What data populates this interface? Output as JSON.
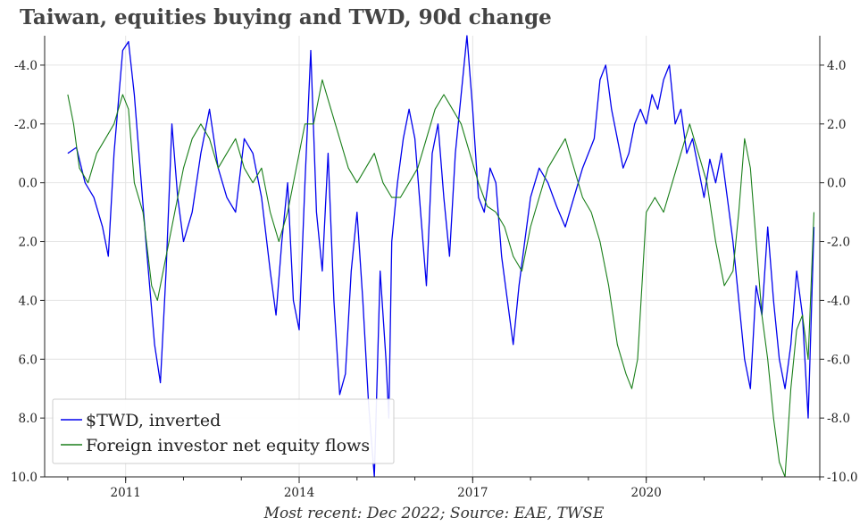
{
  "title": "Taiwan, equities buying and TWD, 90d change",
  "source": "Most recent: Dec 2022; Source: EAE, TWSE",
  "chart_data": {
    "type": "line",
    "title": "Taiwan, equities buying and TWD, 90d change",
    "xlabel": "",
    "ylabel": "",
    "x_ticks": [
      2011,
      2014,
      2017,
      2020
    ],
    "x_range": [
      2009.6,
      2023.0
    ],
    "left_axis": {
      "inverted": true,
      "ylim": [
        -5.0,
        10.0
      ],
      "tick_values": [
        -4.0,
        -2.0,
        0.0,
        2.0,
        4.0,
        6.0,
        8.0,
        10.0
      ],
      "tick_labels": [
        "-4.0",
        "-2.0",
        "0.0",
        "2.0",
        "4.0",
        "6.0",
        "8.0",
        "10.0"
      ]
    },
    "right_axis": {
      "ylim": [
        -10.0,
        5.0
      ],
      "tick_values": [
        4.0,
        2.0,
        0.0,
        -2.0,
        -4.0,
        -6.0,
        -8.0,
        -10.0
      ],
      "tick_labels": [
        "4.0",
        "2.0",
        "0.0",
        "-2.0",
        "-4.0",
        "-6.0",
        "-8.0",
        "-10.0"
      ]
    },
    "grid": true,
    "legend_position": "bottom-left",
    "series": [
      {
        "name": "$TWD, inverted",
        "axis": "left",
        "color": "#0000ee",
        "x": [
          2010.0,
          2010.15,
          2010.3,
          2010.45,
          2010.6,
          2010.7,
          2010.8,
          2010.95,
          2011.05,
          2011.15,
          2011.25,
          2011.35,
          2011.5,
          2011.6,
          2011.7,
          2011.8,
          2011.9,
          2012.0,
          2012.15,
          2012.3,
          2012.45,
          2012.6,
          2012.75,
          2012.9,
          2013.05,
          2013.2,
          2013.35,
          2013.5,
          2013.6,
          2013.7,
          2013.8,
          2013.9,
          2014.0,
          2014.1,
          2014.2,
          2014.3,
          2014.4,
          2014.5,
          2014.6,
          2014.7,
          2014.8,
          2014.9,
          2015.0,
          2015.1,
          2015.2,
          2015.3,
          2015.4,
          2015.5,
          2015.55,
          2015.6,
          2015.7,
          2015.8,
          2015.9,
          2016.0,
          2016.1,
          2016.2,
          2016.3,
          2016.4,
          2016.5,
          2016.6,
          2016.7,
          2016.8,
          2016.9,
          2017.0,
          2017.1,
          2017.2,
          2017.3,
          2017.4,
          2017.5,
          2017.6,
          2017.7,
          2017.8,
          2017.9,
          2018.0,
          2018.15,
          2018.3,
          2018.45,
          2018.6,
          2018.75,
          2018.9,
          2019.0,
          2019.1,
          2019.2,
          2019.3,
          2019.4,
          2019.5,
          2019.6,
          2019.7,
          2019.8,
          2019.9,
          2020.0,
          2020.1,
          2020.2,
          2020.3,
          2020.4,
          2020.5,
          2020.6,
          2020.7,
          2020.8,
          2020.9,
          2021.0,
          2021.1,
          2021.2,
          2021.3,
          2021.4,
          2021.5,
          2021.6,
          2021.7,
          2021.8,
          2021.9,
          2022.0,
          2022.1,
          2022.2,
          2022.3,
          2022.4,
          2022.5,
          2022.6,
          2022.7,
          2022.8,
          2022.9
        ],
        "values": [
          -1.0,
          -1.2,
          0.0,
          0.5,
          1.5,
          2.5,
          -1.0,
          -4.5,
          -4.8,
          -3.0,
          -0.5,
          2.0,
          5.5,
          6.8,
          3.0,
          -2.0,
          0.5,
          2.0,
          1.0,
          -1.0,
          -2.5,
          -0.5,
          0.5,
          1.0,
          -1.5,
          -1.0,
          0.5,
          3.0,
          4.5,
          2.0,
          0.0,
          4.0,
          5.0,
          0.0,
          -4.5,
          1.0,
          3.0,
          -1.0,
          4.0,
          7.2,
          6.5,
          3.0,
          1.0,
          4.0,
          7.5,
          10.0,
          3.0,
          6.0,
          8.0,
          2.0,
          0.0,
          -1.5,
          -2.5,
          -1.5,
          1.0,
          3.5,
          -1.0,
          -2.0,
          0.5,
          2.5,
          -1.0,
          -3.0,
          -5.0,
          -2.5,
          0.5,
          1.0,
          -0.5,
          0.0,
          2.5,
          4.0,
          5.5,
          3.5,
          2.0,
          0.5,
          -0.5,
          0.0,
          0.8,
          1.5,
          0.5,
          -0.5,
          -1.0,
          -1.5,
          -3.5,
          -4.0,
          -2.5,
          -1.5,
          -0.5,
          -1.0,
          -2.0,
          -2.5,
          -2.0,
          -3.0,
          -2.5,
          -3.5,
          -4.0,
          -2.0,
          -2.5,
          -1.0,
          -1.5,
          -0.5,
          0.5,
          -0.8,
          0.0,
          -1.0,
          0.5,
          2.0,
          4.0,
          6.0,
          7.0,
          3.5,
          4.5,
          1.5,
          4.0,
          6.0,
          7.0,
          5.5,
          3.0,
          4.5,
          8.0,
          1.5
        ]
      },
      {
        "name": "Foreign investor net equity flows",
        "axis": "right",
        "color": "#1a7f1a",
        "x": [
          2010.0,
          2010.1,
          2010.2,
          2010.35,
          2010.5,
          2010.65,
          2010.8,
          2010.95,
          2011.05,
          2011.15,
          2011.3,
          2011.45,
          2011.55,
          2011.7,
          2011.85,
          2012.0,
          2012.15,
          2012.3,
          2012.45,
          2012.6,
          2012.75,
          2012.9,
          2013.05,
          2013.2,
          2013.35,
          2013.5,
          2013.65,
          2013.8,
          2013.95,
          2014.1,
          2014.25,
          2014.4,
          2014.55,
          2014.7,
          2014.85,
          2015.0,
          2015.15,
          2015.3,
          2015.45,
          2015.6,
          2015.75,
          2015.9,
          2016.05,
          2016.2,
          2016.35,
          2016.5,
          2016.65,
          2016.8,
          2016.95,
          2017.1,
          2017.25,
          2017.4,
          2017.55,
          2017.7,
          2017.85,
          2018.0,
          2018.15,
          2018.3,
          2018.45,
          2018.6,
          2018.75,
          2018.9,
          2019.05,
          2019.2,
          2019.35,
          2019.5,
          2019.65,
          2019.75,
          2019.85,
          2020.0,
          2020.15,
          2020.3,
          2020.45,
          2020.6,
          2020.75,
          2020.9,
          2021.05,
          2021.2,
          2021.35,
          2021.5,
          2021.6,
          2021.7,
          2021.8,
          2021.9,
          2022.0,
          2022.1,
          2022.2,
          2022.3,
          2022.4,
          2022.5,
          2022.6,
          2022.7,
          2022.8,
          2022.9
        ],
        "values": [
          3.0,
          2.0,
          0.5,
          0.0,
          1.0,
          1.5,
          2.0,
          3.0,
          2.5,
          0.0,
          -1.0,
          -3.5,
          -4.0,
          -2.5,
          -1.0,
          0.5,
          1.5,
          2.0,
          1.5,
          0.5,
          1.0,
          1.5,
          0.5,
          0.0,
          0.5,
          -1.0,
          -2.0,
          -1.0,
          0.5,
          2.0,
          2.0,
          3.5,
          2.5,
          1.5,
          0.5,
          0.0,
          0.5,
          1.0,
          0.0,
          -0.5,
          -0.5,
          0.0,
          0.5,
          1.5,
          2.5,
          3.0,
          2.5,
          2.0,
          1.0,
          0.0,
          -0.8,
          -1.0,
          -1.5,
          -2.5,
          -3.0,
          -1.5,
          -0.5,
          0.5,
          1.0,
          1.5,
          0.5,
          -0.5,
          -1.0,
          -2.0,
          -3.5,
          -5.5,
          -6.5,
          -7.0,
          -6.0,
          -1.0,
          -0.5,
          -1.0,
          0.0,
          1.0,
          2.0,
          1.0,
          0.0,
          -2.0,
          -3.5,
          -3.0,
          -1.0,
          1.5,
          0.5,
          -2.0,
          -4.5,
          -6.0,
          -8.0,
          -9.5,
          -10.0,
          -7.0,
          -5.0,
          -4.5,
          -6.0,
          -1.0
        ]
      }
    ]
  }
}
